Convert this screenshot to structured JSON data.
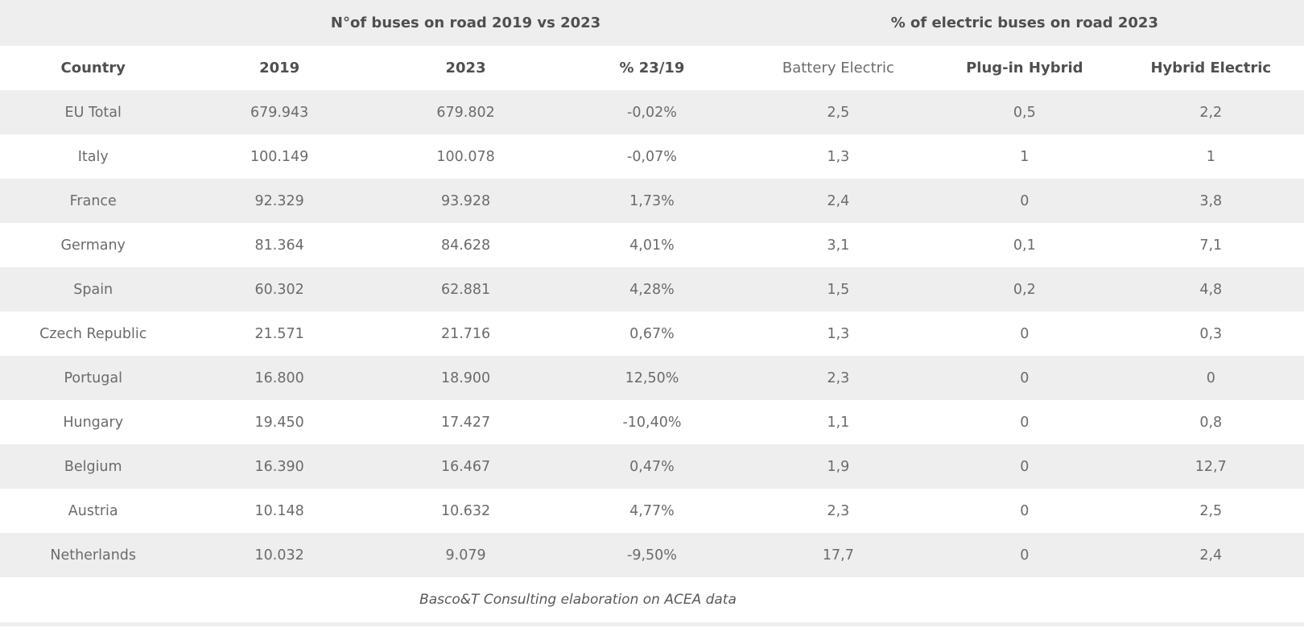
{
  "chart_data": {
    "type": "table",
    "group_headers": [
      {
        "label": "N°of buses on road 2019 vs 2023",
        "span": 3
      },
      {
        "label": "% of electric buses on road 2023",
        "span": 3
      }
    ],
    "columns": [
      "Country",
      "2019",
      "2023",
      "% 23/19",
      "Battery Electric",
      "Plug-in Hybrid",
      "Hybrid Electric"
    ],
    "rows": [
      [
        "EU Total",
        "679.943",
        "679.802",
        "-0,02%",
        "2,5",
        "0,5",
        "2,2"
      ],
      [
        "Italy",
        "100.149",
        "100.078",
        "-0,07%",
        "1,3",
        "1",
        "1"
      ],
      [
        "France",
        "92.329",
        "93.928",
        "1,73%",
        "2,4",
        "0",
        "3,8"
      ],
      [
        "Germany",
        "81.364",
        "84.628",
        "4,01%",
        "3,1",
        "0,1",
        "7,1"
      ],
      [
        "Spain",
        "60.302",
        "62.881",
        "4,28%",
        "1,5",
        "0,2",
        "4,8"
      ],
      [
        "Czech Republic",
        "21.571",
        "21.716",
        "0,67%",
        "1,3",
        "0",
        "0,3"
      ],
      [
        "Portugal",
        "16.800",
        "18.900",
        "12,50%",
        "2,3",
        "0",
        "0"
      ],
      [
        "Hungary",
        "19.450",
        "17.427",
        "-10,40%",
        "1,1",
        "0",
        "0,8"
      ],
      [
        "Belgium",
        "16.390",
        "16.467",
        "0,47%",
        "1,9",
        "0",
        "12,7"
      ],
      [
        "Austria",
        "10.148",
        "10.632",
        "4,77%",
        "2,3",
        "0",
        "2,5"
      ],
      [
        "Netherlands",
        "10.032",
        "9.079",
        "-9,50%",
        "17,7",
        "0",
        "2,4"
      ]
    ],
    "caption": "Basco&T Consulting elaboration on ACEA data",
    "layout_hints": {
      "striped_rows": "first data row shaded, alternating",
      "grid": "off"
    }
  },
  "colors": {
    "stripe_background": "#eeeeee",
    "header_text": "#4f4f4f",
    "body_text": "#6b6b6b",
    "caption_text": "#595959",
    "page_background": "#ffffff"
  }
}
